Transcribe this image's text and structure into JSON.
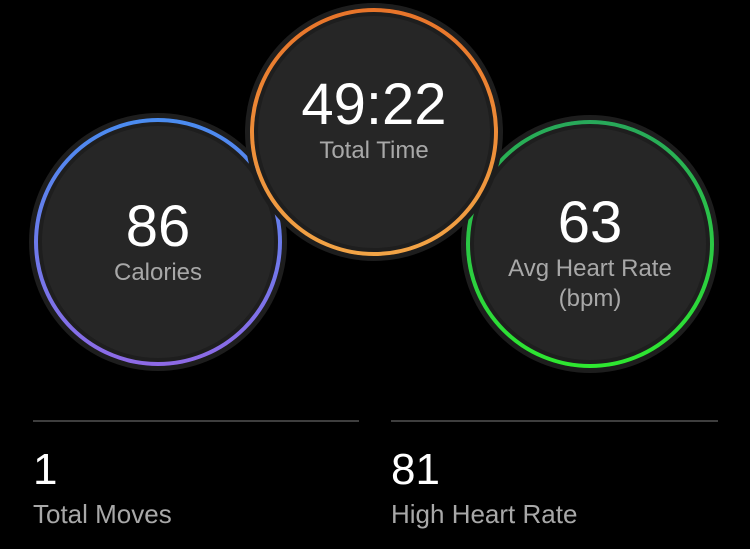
{
  "rings": {
    "calories": {
      "value": "86",
      "label": "Calories",
      "colors": [
        "#4a8cf0",
        "#8e6ae6"
      ]
    },
    "total_time": {
      "value": "49:22",
      "label": "Total Time",
      "colors": [
        "#e8742a",
        "#f2a446"
      ]
    },
    "avg_heart_rate": {
      "value": "63",
      "label": "Avg Heart Rate",
      "unit": "(bpm)",
      "colors": [
        "#28a85a",
        "#2ee830"
      ]
    }
  },
  "stats": [
    {
      "value": "1",
      "label": "Total Moves"
    },
    {
      "value": "81",
      "label": "High Heart Rate"
    }
  ]
}
